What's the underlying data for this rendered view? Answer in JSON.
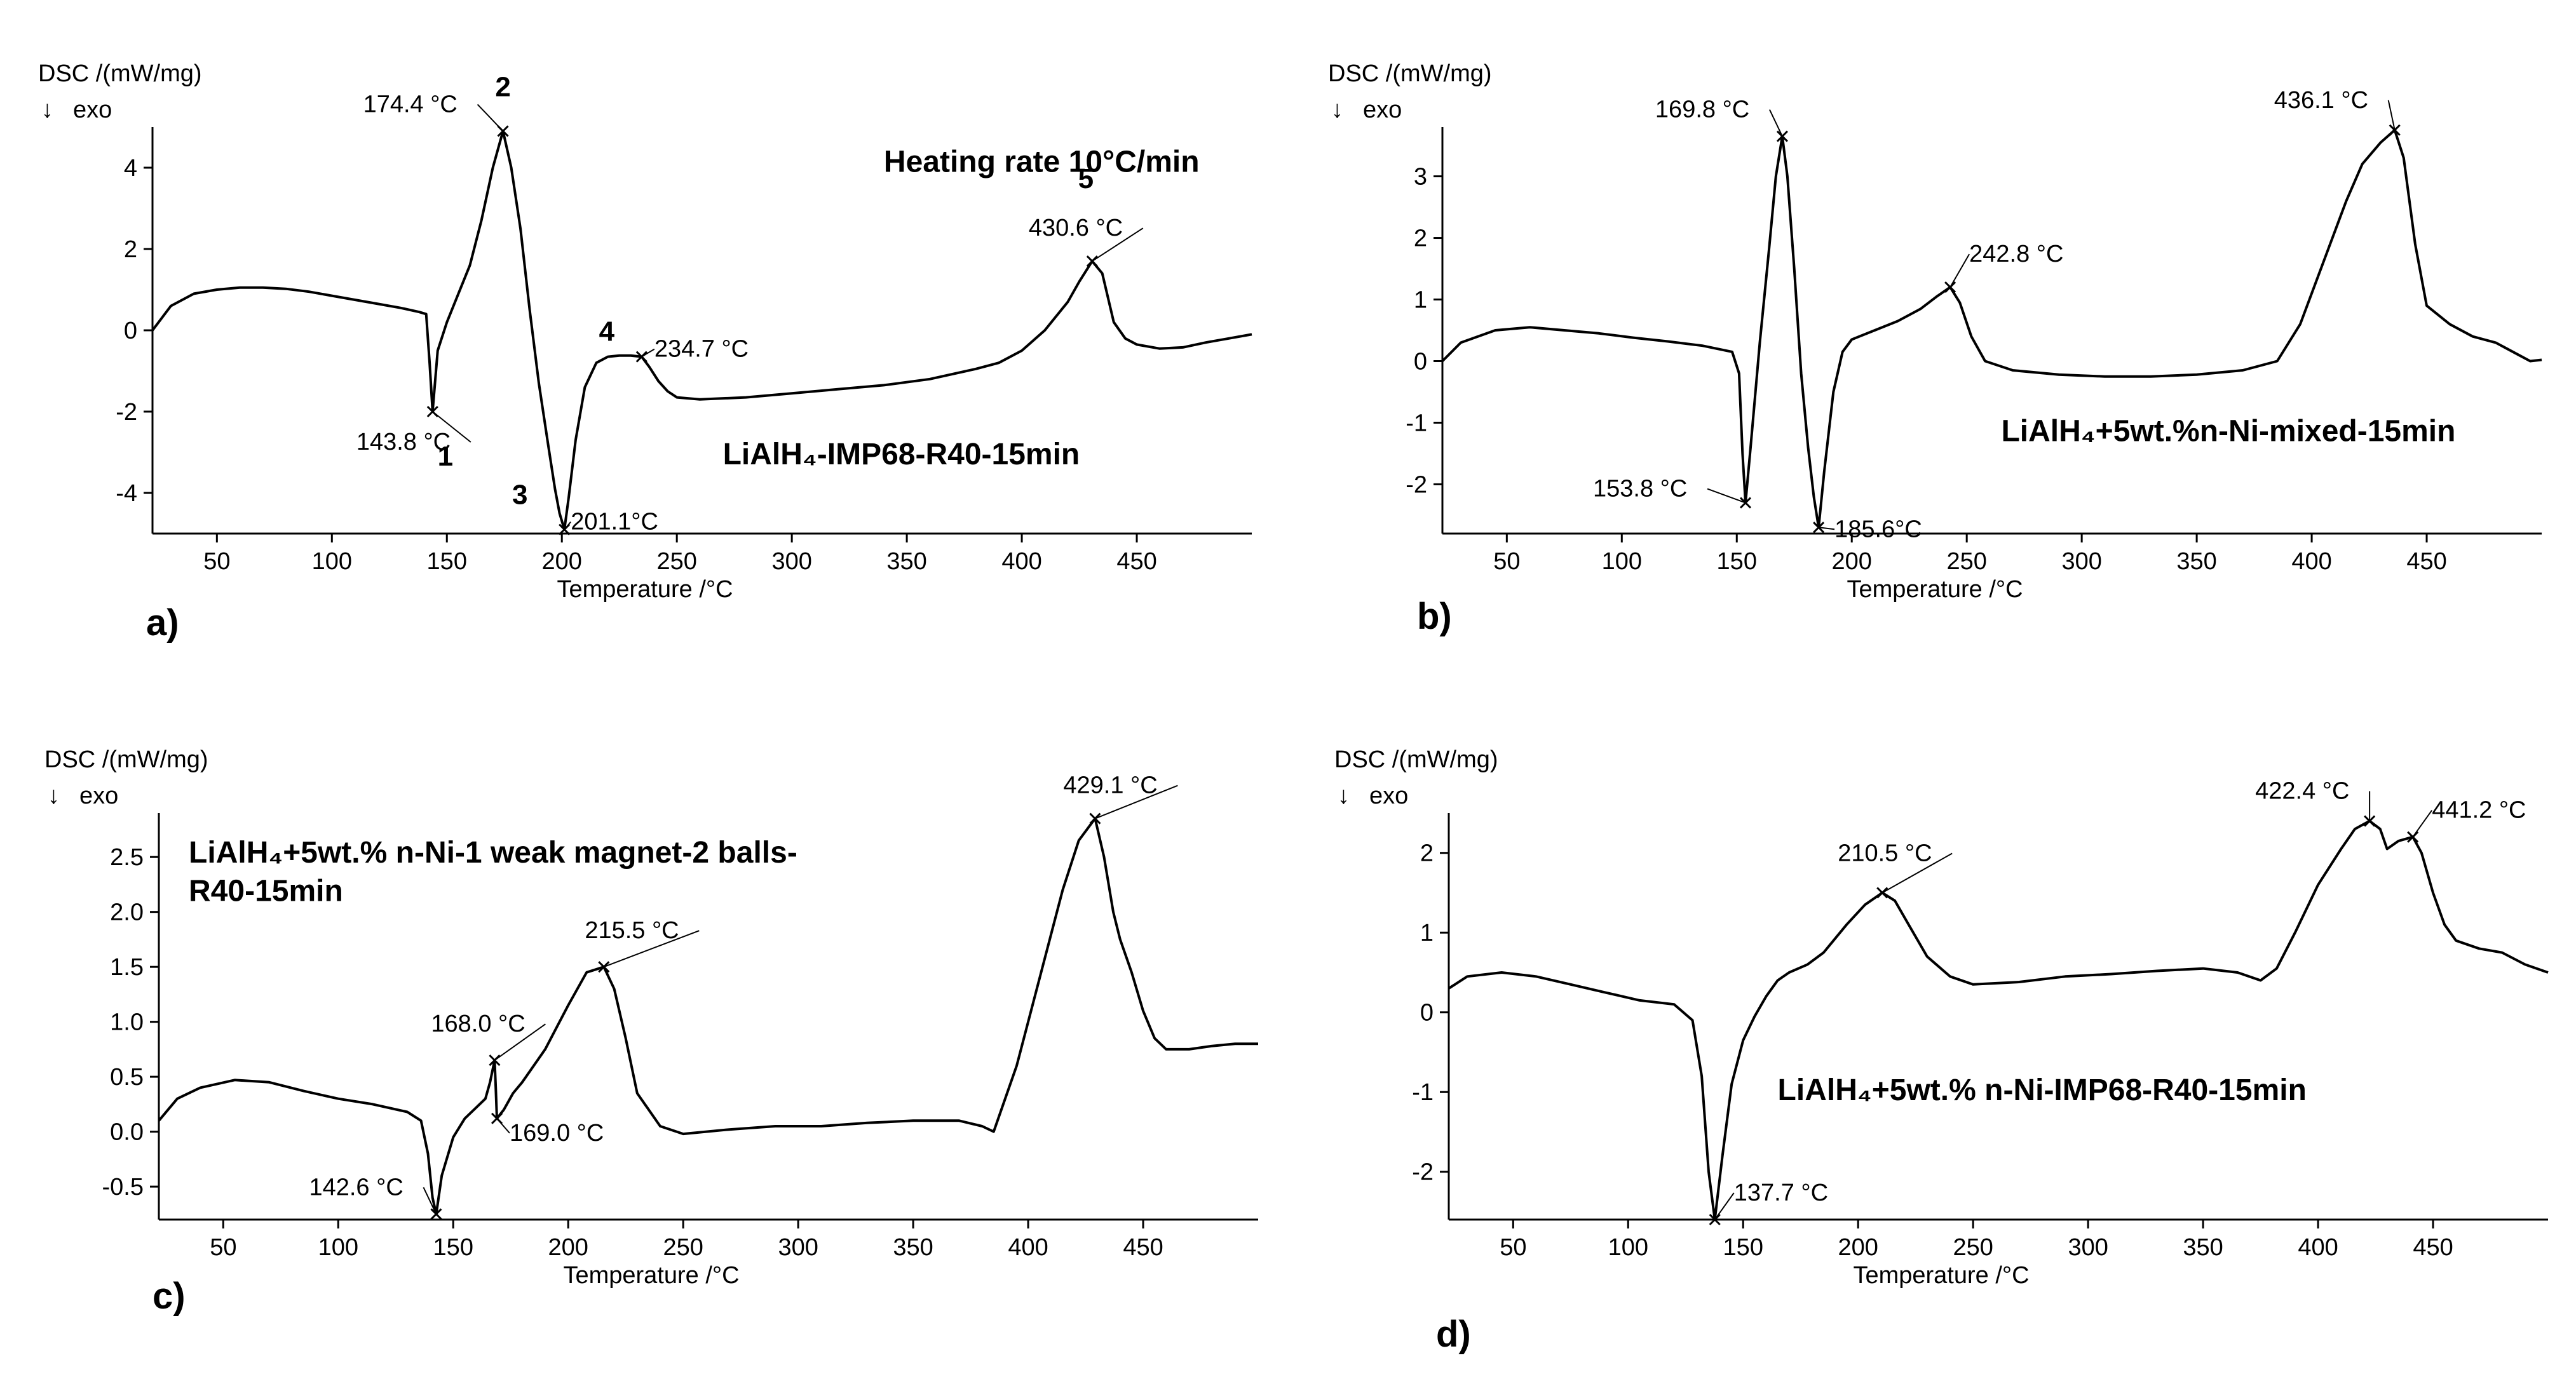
{
  "chart_data": [
    {
      "type": "line",
      "panel_label": "a)",
      "ylabel": "DSC /(mW/mg)",
      "exo": "exo",
      "xlabel": "Temperature /°C",
      "xlim": [
        22,
        500
      ],
      "ylim": [
        -5,
        5
      ],
      "xticks": [
        50,
        100,
        150,
        200,
        250,
        300,
        350,
        400,
        450
      ],
      "yticks": [
        4,
        2,
        0,
        -2,
        -4
      ],
      "texts": [
        {
          "text": "Heating rate 10°C/min",
          "x": 340,
          "y": 3.9
        },
        {
          "text": "LiAlH₄-IMP68-R40-15min",
          "x": 270,
          "y": -3.3
        }
      ],
      "series": [
        {
          "name": "LiAlH4-IMP68-R40-15min",
          "x": [
            22,
            30,
            40,
            50,
            60,
            70,
            80,
            90,
            100,
            110,
            120,
            130,
            138,
            141,
            142.5,
            143.8,
            146,
            150,
            155,
            160,
            165,
            170,
            174.4,
            178,
            182,
            186,
            190,
            194,
            197,
            199,
            201.1,
            203,
            206,
            210,
            215,
            220,
            225,
            230,
            234.7,
            238,
            242,
            246,
            250,
            260,
            280,
            300,
            320,
            340,
            360,
            380,
            390,
            400,
            410,
            420,
            425,
            430.6,
            435,
            440,
            445,
            450,
            460,
            470,
            480,
            490,
            500
          ],
          "y": [
            0,
            0.6,
            0.9,
            1.0,
            1.05,
            1.05,
            1.02,
            0.95,
            0.85,
            0.75,
            0.65,
            0.55,
            0.45,
            0.4,
            -0.8,
            -2.0,
            -0.5,
            0.2,
            0.9,
            1.6,
            2.7,
            4.0,
            4.9,
            4.0,
            2.5,
            0.5,
            -1.3,
            -2.8,
            -3.9,
            -4.5,
            -4.9,
            -4.1,
            -2.7,
            -1.4,
            -0.8,
            -0.65,
            -0.62,
            -0.62,
            -0.65,
            -0.9,
            -1.25,
            -1.5,
            -1.65,
            -1.7,
            -1.65,
            -1.55,
            -1.45,
            -1.35,
            -1.2,
            -0.95,
            -0.8,
            -0.5,
            0.0,
            0.7,
            1.2,
            1.7,
            1.4,
            0.2,
            -0.2,
            -0.35,
            -0.45,
            -0.42,
            -0.3,
            -0.2,
            -0.1
          ]
        }
      ],
      "annotations": [
        {
          "label": "174.4 °C",
          "x": 174.4,
          "y": 4.9,
          "num": "2"
        },
        {
          "label": "143.8 °C",
          "x": 143.8,
          "y": -2.0,
          "num": "1"
        },
        {
          "label": "201.1°C",
          "x": 201.1,
          "y": -4.9,
          "num": "3"
        },
        {
          "label": "234.7 °C",
          "x": 234.7,
          "y": -0.65,
          "num": "4"
        },
        {
          "label": "430.6 °C",
          "x": 430.6,
          "y": 1.7,
          "num": "5"
        }
      ]
    },
    {
      "type": "line",
      "panel_label": "b)",
      "ylabel": "DSC /(mW/mg)",
      "exo": "exo",
      "xlabel": "Temperature /°C",
      "xlim": [
        22,
        500
      ],
      "ylim": [
        -2.8,
        3.8
      ],
      "xticks": [
        50,
        100,
        150,
        200,
        250,
        300,
        350,
        400,
        450
      ],
      "yticks": [
        3,
        2,
        1,
        0,
        -1,
        -2
      ],
      "texts": [
        {
          "text": "LiAlH₄+5wt.%n-Ni-mixed-15min",
          "x": 265,
          "y": -1.3
        }
      ],
      "series": [
        {
          "name": "LiAlH4+5wt.%n-Ni-mixed-15min",
          "x": [
            22,
            30,
            45,
            60,
            75,
            90,
            105,
            120,
            135,
            148,
            151,
            152.5,
            153.8,
            156,
            160,
            164,
            167,
            169.8,
            172,
            175,
            178,
            181,
            183.5,
            185.6,
            188,
            192,
            196,
            200,
            210,
            220,
            230,
            237,
            242.8,
            247,
            252,
            258,
            270,
            290,
            310,
            330,
            350,
            370,
            385,
            395,
            405,
            415,
            422,
            430,
            436.1,
            440,
            445,
            450,
            460,
            470,
            480,
            490,
            495,
            500
          ],
          "y": [
            0,
            0.3,
            0.5,
            0.55,
            0.5,
            0.45,
            0.38,
            0.32,
            0.25,
            0.15,
            -0.2,
            -1.5,
            -2.3,
            -1.4,
            0.3,
            1.8,
            3.0,
            3.65,
            3.0,
            1.5,
            -0.2,
            -1.4,
            -2.2,
            -2.7,
            -1.8,
            -0.5,
            0.15,
            0.35,
            0.5,
            0.65,
            0.85,
            1.05,
            1.2,
            0.95,
            0.4,
            0.0,
            -0.15,
            -0.22,
            -0.25,
            -0.25,
            -0.22,
            -0.15,
            0.0,
            0.6,
            1.6,
            2.6,
            3.2,
            3.55,
            3.75,
            3.3,
            1.9,
            0.9,
            0.6,
            0.4,
            0.3,
            0.1,
            0.0,
            0.02
          ]
        }
      ],
      "annotations": [
        {
          "label": "169.8 °C",
          "x": 169.8,
          "y": 3.65
        },
        {
          "label": "153.8 °C",
          "x": 153.8,
          "y": -2.3
        },
        {
          "label": "185.6°C",
          "x": 185.6,
          "y": -2.7
        },
        {
          "label": "242.8 °C",
          "x": 242.8,
          "y": 1.2
        },
        {
          "label": "436.1 °C",
          "x": 436.1,
          "y": 3.75
        }
      ]
    },
    {
      "type": "line",
      "panel_label": "c)",
      "ylabel": "DSC /(mW/mg)",
      "exo": "exo",
      "xlabel": "Temperature /°C",
      "xlim": [
        22,
        500
      ],
      "ylim": [
        -0.8,
        2.9
      ],
      "xticks": [
        50,
        100,
        150,
        200,
        250,
        300,
        350,
        400,
        450
      ],
      "yticks": [
        2.5,
        2.0,
        1.5,
        1.0,
        0.5,
        0.0,
        -0.5
      ],
      "texts": [
        {
          "text": "LiAlH₄+5wt.% n-Ni-1 weak magnet-2 balls-",
          "x": 35,
          "y": 2.45
        },
        {
          "text": "R40-15min",
          "x": 35,
          "y": 2.1
        }
      ],
      "series": [
        {
          "name": "LiAlH4+5wt.% n-Ni-1 weak magnet-2 balls-R40-15min",
          "x": [
            22,
            30,
            40,
            55,
            70,
            85,
            100,
            115,
            130,
            136,
            139,
            141,
            142.6,
            145,
            150,
            155,
            160,
            164,
            166,
            168.0,
            168.5,
            169.0,
            172,
            176,
            180,
            190,
            200,
            208,
            215.5,
            220,
            225,
            230,
            240,
            250,
            270,
            290,
            310,
            330,
            350,
            370,
            380,
            385,
            395,
            405,
            415,
            422,
            429.1,
            433,
            437,
            440,
            445,
            450,
            455,
            460,
            470,
            480,
            490,
            500
          ],
          "y": [
            0.1,
            0.3,
            0.4,
            0.47,
            0.45,
            0.37,
            0.3,
            0.25,
            0.18,
            0.1,
            -0.2,
            -0.6,
            -0.75,
            -0.4,
            -0.05,
            0.12,
            0.22,
            0.3,
            0.45,
            0.65,
            0.4,
            0.12,
            0.2,
            0.35,
            0.45,
            0.75,
            1.15,
            1.45,
            1.5,
            1.3,
            0.85,
            0.35,
            0.05,
            -0.02,
            0.02,
            0.05,
            0.05,
            0.08,
            0.1,
            0.1,
            0.05,
            0.0,
            0.6,
            1.4,
            2.2,
            2.65,
            2.85,
            2.5,
            2.0,
            1.75,
            1.45,
            1.1,
            0.85,
            0.75,
            0.75,
            0.78,
            0.8,
            0.8
          ]
        }
      ],
      "annotations": [
        {
          "label": "429.1 °C",
          "x": 429.1,
          "y": 2.85
        },
        {
          "label": "215.5 °C",
          "x": 215.5,
          "y": 1.5
        },
        {
          "label": "168.0 °C",
          "x": 168.0,
          "y": 0.65
        },
        {
          "label": "169.0 °C",
          "x": 169.0,
          "y": 0.12
        },
        {
          "label": "142.6 °C",
          "x": 142.6,
          "y": -0.75
        }
      ]
    },
    {
      "type": "line",
      "panel_label": "d)",
      "ylabel": "DSC /(mW/mg)",
      "exo": "exo",
      "xlabel": "Temperature /°C",
      "xlim": [
        22,
        500
      ],
      "ylim": [
        -2.6,
        2.5
      ],
      "xticks": [
        50,
        100,
        150,
        200,
        250,
        300,
        350,
        400,
        450
      ],
      "yticks": [
        2,
        1,
        0,
        -1,
        -2
      ],
      "texts": [
        {
          "text": "LiAlH₄+5wt.% n-Ni-IMP68-R40-15min",
          "x": 165,
          "y": -1.1
        }
      ],
      "series": [
        {
          "name": "LiAlH4+5wt.% n-Ni-IMP68-R40-15min",
          "x": [
            22,
            30,
            45,
            60,
            75,
            90,
            105,
            120,
            128,
            132,
            135,
            137.7,
            141,
            145,
            150,
            155,
            160,
            165,
            170,
            178,
            185,
            195,
            203,
            210.5,
            216,
            222,
            230,
            240,
            250,
            270,
            290,
            310,
            330,
            350,
            365,
            375,
            382,
            390,
            400,
            410,
            416,
            422.4,
            427,
            430,
            435,
            441.2,
            445,
            450,
            455,
            460,
            470,
            480,
            490,
            500
          ],
          "y": [
            0.3,
            0.45,
            0.5,
            0.45,
            0.35,
            0.25,
            0.15,
            0.1,
            -0.1,
            -0.8,
            -2.0,
            -2.6,
            -1.8,
            -0.9,
            -0.35,
            -0.05,
            0.2,
            0.4,
            0.5,
            0.6,
            0.75,
            1.1,
            1.35,
            1.5,
            1.4,
            1.1,
            0.7,
            0.45,
            0.35,
            0.38,
            0.45,
            0.48,
            0.52,
            0.55,
            0.5,
            0.4,
            0.55,
            1.0,
            1.6,
            2.05,
            2.3,
            2.4,
            2.3,
            2.05,
            2.15,
            2.2,
            2.0,
            1.5,
            1.1,
            0.9,
            0.8,
            0.75,
            0.6,
            0.5
          ]
        }
      ],
      "annotations": [
        {
          "label": "210.5 °C",
          "x": 210.5,
          "y": 1.5
        },
        {
          "label": "422.4 °C",
          "x": 422.4,
          "y": 2.4
        },
        {
          "label": "441.2 °C",
          "x": 441.2,
          "y": 2.2
        },
        {
          "label": "137.7 °C",
          "x": 137.7,
          "y": -2.6
        }
      ]
    }
  ]
}
